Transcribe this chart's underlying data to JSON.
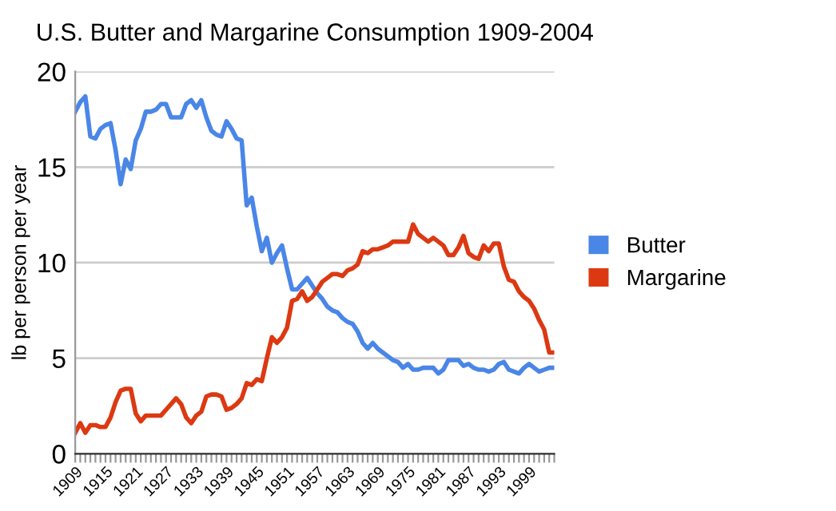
{
  "chart_data": {
    "type": "line",
    "title": "U.S. Butter and Margarine Consumption 1909-2004",
    "ylabel": "lb per person per year",
    "x": [
      1909,
      1910,
      1911,
      1912,
      1913,
      1914,
      1915,
      1916,
      1917,
      1918,
      1919,
      1920,
      1921,
      1922,
      1923,
      1924,
      1925,
      1926,
      1927,
      1928,
      1929,
      1930,
      1931,
      1932,
      1933,
      1934,
      1935,
      1936,
      1937,
      1938,
      1939,
      1940,
      1941,
      1942,
      1943,
      1944,
      1945,
      1946,
      1947,
      1948,
      1949,
      1950,
      1951,
      1952,
      1953,
      1954,
      1955,
      1956,
      1957,
      1958,
      1959,
      1960,
      1961,
      1962,
      1963,
      1964,
      1965,
      1966,
      1967,
      1968,
      1969,
      1970,
      1971,
      1972,
      1973,
      1974,
      1975,
      1976,
      1977,
      1978,
      1979,
      1980,
      1981,
      1982,
      1983,
      1984,
      1985,
      1986,
      1987,
      1988,
      1989,
      1990,
      1991,
      1992,
      1993,
      1994,
      1995,
      1996,
      1997,
      1998,
      1999,
      2000,
      2001,
      2002,
      2003,
      2004
    ],
    "series": [
      {
        "name": "Butter",
        "color": "#4a86e8",
        "values": [
          17.9,
          18.4,
          18.7,
          16.6,
          16.5,
          17.0,
          17.2,
          17.3,
          15.9,
          14.1,
          15.4,
          14.9,
          16.4,
          17.0,
          17.9,
          17.9,
          18.0,
          18.3,
          18.3,
          17.6,
          17.6,
          17.6,
          18.3,
          18.5,
          18.1,
          18.5,
          17.6,
          16.9,
          16.7,
          16.6,
          17.4,
          17.0,
          16.5,
          16.4,
          13.0,
          13.4,
          11.9,
          10.6,
          11.3,
          10.0,
          10.5,
          10.9,
          9.7,
          8.6,
          8.6,
          8.9,
          9.2,
          8.8,
          8.4,
          8.1,
          7.7,
          7.5,
          7.4,
          7.1,
          6.9,
          6.8,
          6.4,
          5.8,
          5.5,
          5.8,
          5.5,
          5.3,
          5.1,
          4.9,
          4.8,
          4.5,
          4.7,
          4.4,
          4.4,
          4.5,
          4.5,
          4.5,
          4.2,
          4.4,
          4.9,
          4.9,
          4.9,
          4.6,
          4.7,
          4.5,
          4.4,
          4.4,
          4.3,
          4.4,
          4.7,
          4.8,
          4.4,
          4.3,
          4.2,
          4.5,
          4.7,
          4.5,
          4.3,
          4.4,
          4.5,
          4.5
        ]
      },
      {
        "name": "Margarine",
        "color": "#dc3912",
        "values": [
          1.1,
          1.6,
          1.1,
          1.5,
          1.5,
          1.4,
          1.4,
          1.9,
          2.7,
          3.3,
          3.4,
          3.4,
          2.1,
          1.7,
          2.0,
          2.0,
          2.0,
          2.0,
          2.3,
          2.6,
          2.9,
          2.6,
          1.9,
          1.6,
          2.0,
          2.2,
          3.0,
          3.1,
          3.1,
          3.0,
          2.3,
          2.4,
          2.6,
          2.9,
          3.7,
          3.6,
          3.9,
          3.8,
          5.0,
          6.1,
          5.8,
          6.1,
          6.6,
          8.0,
          8.1,
          8.5,
          8.0,
          8.2,
          8.6,
          9.0,
          9.2,
          9.4,
          9.4,
          9.3,
          9.6,
          9.7,
          9.9,
          10.6,
          10.5,
          10.7,
          10.7,
          10.8,
          10.9,
          11.1,
          11.1,
          11.1,
          11.1,
          12.0,
          11.5,
          11.3,
          11.1,
          11.3,
          11.1,
          10.9,
          10.4,
          10.4,
          10.8,
          11.4,
          10.5,
          10.3,
          10.2,
          10.9,
          10.6,
          11.0,
          11.0,
          9.8,
          9.1,
          9.0,
          8.5,
          8.2,
          8.0,
          7.6,
          7.0,
          6.5,
          5.3,
          5.3
        ]
      }
    ],
    "xlim": [
      1909,
      2004
    ],
    "xticks": [
      1909,
      {
        "value": 1910,
        "label": null
      },
      {
        "value": 1911,
        "label": null
      },
      {
        "value": 1912,
        "label": null
      },
      {
        "value": 1913,
        "label": null
      },
      {
        "value": 1914,
        "label": null
      },
      1915,
      {
        "value": 1916,
        "label": null
      },
      {
        "value": 1917,
        "label": null
      },
      {
        "value": 1918,
        "label": null
      },
      {
        "value": 1919,
        "label": null
      },
      {
        "value": 1920,
        "label": null
      },
      1921,
      {
        "value": 1922,
        "label": null
      },
      {
        "value": 1923,
        "label": null
      },
      {
        "value": 1924,
        "label": null
      },
      {
        "value": 1925,
        "label": null
      },
      {
        "value": 1926,
        "label": null
      },
      1927,
      {
        "value": 1928,
        "label": null
      },
      {
        "value": 1929,
        "label": null
      },
      {
        "value": 1930,
        "label": null
      },
      {
        "value": 1931,
        "label": null
      },
      {
        "value": 1932,
        "label": null
      },
      1933,
      {
        "value": 1934,
        "label": null
      },
      {
        "value": 1935,
        "label": null
      },
      {
        "value": 1936,
        "label": null
      },
      {
        "value": 1937,
        "label": null
      },
      {
        "value": 1938,
        "label": null
      },
      1939,
      {
        "value": 1940,
        "label": null
      },
      {
        "value": 1941,
        "label": null
      },
      {
        "value": 1942,
        "label": null
      },
      {
        "value": 1943,
        "label": null
      },
      {
        "value": 1944,
        "label": null
      },
      1945,
      {
        "value": 1946,
        "label": null
      },
      {
        "value": 1947,
        "label": null
      },
      {
        "value": 1948,
        "label": null
      },
      {
        "value": 1949,
        "label": null
      },
      {
        "value": 1950,
        "label": null
      },
      1951,
      {
        "value": 1952,
        "label": null
      },
      {
        "value": 1953,
        "label": null
      },
      {
        "value": 1954,
        "label": null
      },
      {
        "value": 1955,
        "label": null
      },
      {
        "value": 1956,
        "label": null
      },
      1957,
      {
        "value": 1958,
        "label": null
      },
      {
        "value": 1959,
        "label": null
      },
      {
        "value": 1960,
        "label": null
      },
      {
        "value": 1961,
        "label": null
      },
      {
        "value": 1962,
        "label": null
      },
      1963,
      {
        "value": 1964,
        "label": null
      },
      {
        "value": 1965,
        "label": null
      },
      {
        "value": 1966,
        "label": null
      },
      {
        "value": 1967,
        "label": null
      },
      {
        "value": 1968,
        "label": null
      },
      1969,
      {
        "value": 1970,
        "label": null
      },
      {
        "value": 1971,
        "label": null
      },
      {
        "value": 1972,
        "label": null
      },
      {
        "value": 1973,
        "label": null
      },
      {
        "value": 1974,
        "label": null
      },
      1975,
      {
        "value": 1976,
        "label": null
      },
      {
        "value": 1977,
        "label": null
      },
      {
        "value": 1978,
        "label": null
      },
      {
        "value": 1979,
        "label": null
      },
      {
        "value": 1980,
        "label": null
      },
      1981,
      {
        "value": 1982,
        "label": null
      },
      {
        "value": 1983,
        "label": null
      },
      {
        "value": 1984,
        "label": null
      },
      {
        "value": 1985,
        "label": null
      },
      {
        "value": 1986,
        "label": null
      },
      1987,
      {
        "value": 1988,
        "label": null
      },
      {
        "value": 1989,
        "label": null
      },
      {
        "value": 1990,
        "label": null
      },
      {
        "value": 1991,
        "label": null
      },
      {
        "value": 1992,
        "label": null
      },
      1993,
      {
        "value": 1994,
        "label": null
      },
      {
        "value": 1995,
        "label": null
      },
      {
        "value": 1996,
        "label": null
      },
      {
        "value": 1997,
        "label": null
      },
      {
        "value": 1998,
        "label": null
      },
      1999,
      {
        "value": 2000,
        "label": null
      },
      {
        "value": 2001,
        "label": null
      },
      {
        "value": 2002,
        "label": null
      },
      {
        "value": 2003,
        "label": null
      },
      {
        "value": 2004,
        "label": null
      }
    ],
    "ylim": [
      0,
      20
    ],
    "yticks": [
      0,
      5,
      10,
      15,
      20
    ],
    "grid": "y",
    "legend": "right",
    "marker": "none",
    "line_style": "solid"
  }
}
